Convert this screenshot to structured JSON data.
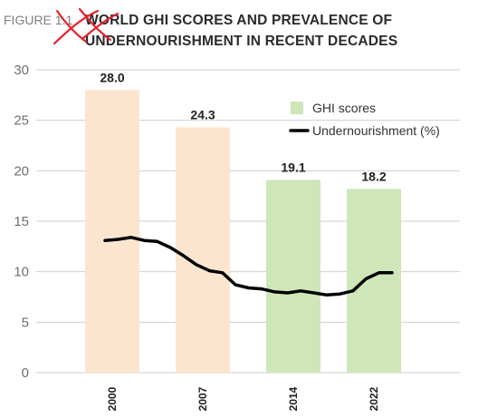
{
  "figure_label": "FIGURE 1.1",
  "title_line1": "WORLD GHI SCORES AND PREVALENCE OF",
  "title_line2": "UNDERNOURISHMENT IN RECENT DECADES",
  "colors": {
    "bar_early": "#fce5cf",
    "bar_late": "#cfe6b8",
    "line": "#000000",
    "grid": "#cfcfcf",
    "axis_text": "#6e6e6e",
    "annotation": "#e8202a"
  },
  "chart_data": {
    "type": "bar",
    "title": "WORLD GHI SCORES AND PREVALENCE OF UNDERNOURISHMENT IN RECENT DECADES",
    "categories": [
      "2000",
      "2007",
      "2014",
      "2022"
    ],
    "ylim": [
      0,
      30
    ],
    "yticks": [
      0,
      5,
      10,
      15,
      20,
      25,
      30
    ],
    "grid": true,
    "legend_position": "top-right",
    "series": [
      {
        "name": "GHI scores",
        "type": "bar",
        "values": [
          28.0,
          24.3,
          19.1,
          18.2
        ],
        "labels": [
          "28.0",
          "24.3",
          "19.1",
          "18.2"
        ]
      },
      {
        "name": "Undernourishment (%)",
        "type": "line",
        "x": [
          2000,
          2001,
          2002,
          2003,
          2004,
          2005,
          2006,
          2007,
          2008,
          2009,
          2010,
          2011,
          2012,
          2013,
          2014,
          2015,
          2016,
          2017,
          2018,
          2019,
          2020,
          2021,
          2022
        ],
        "values": [
          13.1,
          13.2,
          13.4,
          13.1,
          13.0,
          12.4,
          11.6,
          10.7,
          10.1,
          9.9,
          8.7,
          8.4,
          8.3,
          8.0,
          7.9,
          8.1,
          7.9,
          7.7,
          7.8,
          8.1,
          9.3,
          9.9,
          9.9
        ]
      }
    ]
  }
}
